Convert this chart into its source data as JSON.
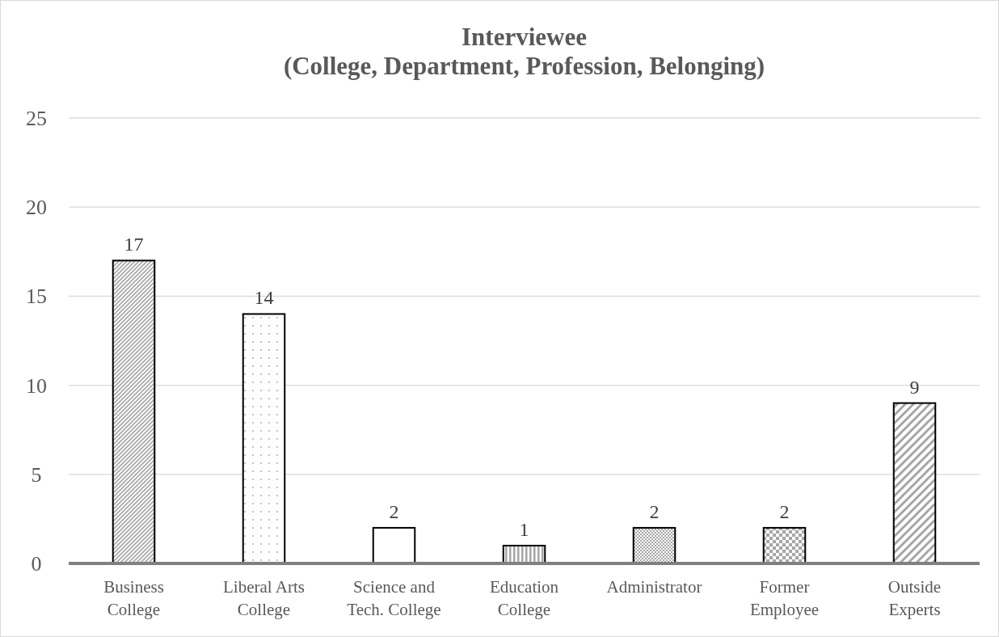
{
  "chart_data": {
    "type": "bar",
    "title": "Interviewee (College, Department, Profession, Belonging)",
    "categories": [
      "Business College",
      "Liberal Arts College",
      "Science and Tech. College",
      "Education College",
      "Administrator",
      "Former Employee",
      "Outside Experts"
    ],
    "values": [
      17,
      14,
      2,
      1,
      2,
      2,
      9
    ],
    "color": "#000000",
    "ylim": [
      0,
      25
    ],
    "yticks": [
      0,
      5,
      10,
      15,
      20,
      25
    ],
    "grid": "y",
    "data_labels": true
  }
}
